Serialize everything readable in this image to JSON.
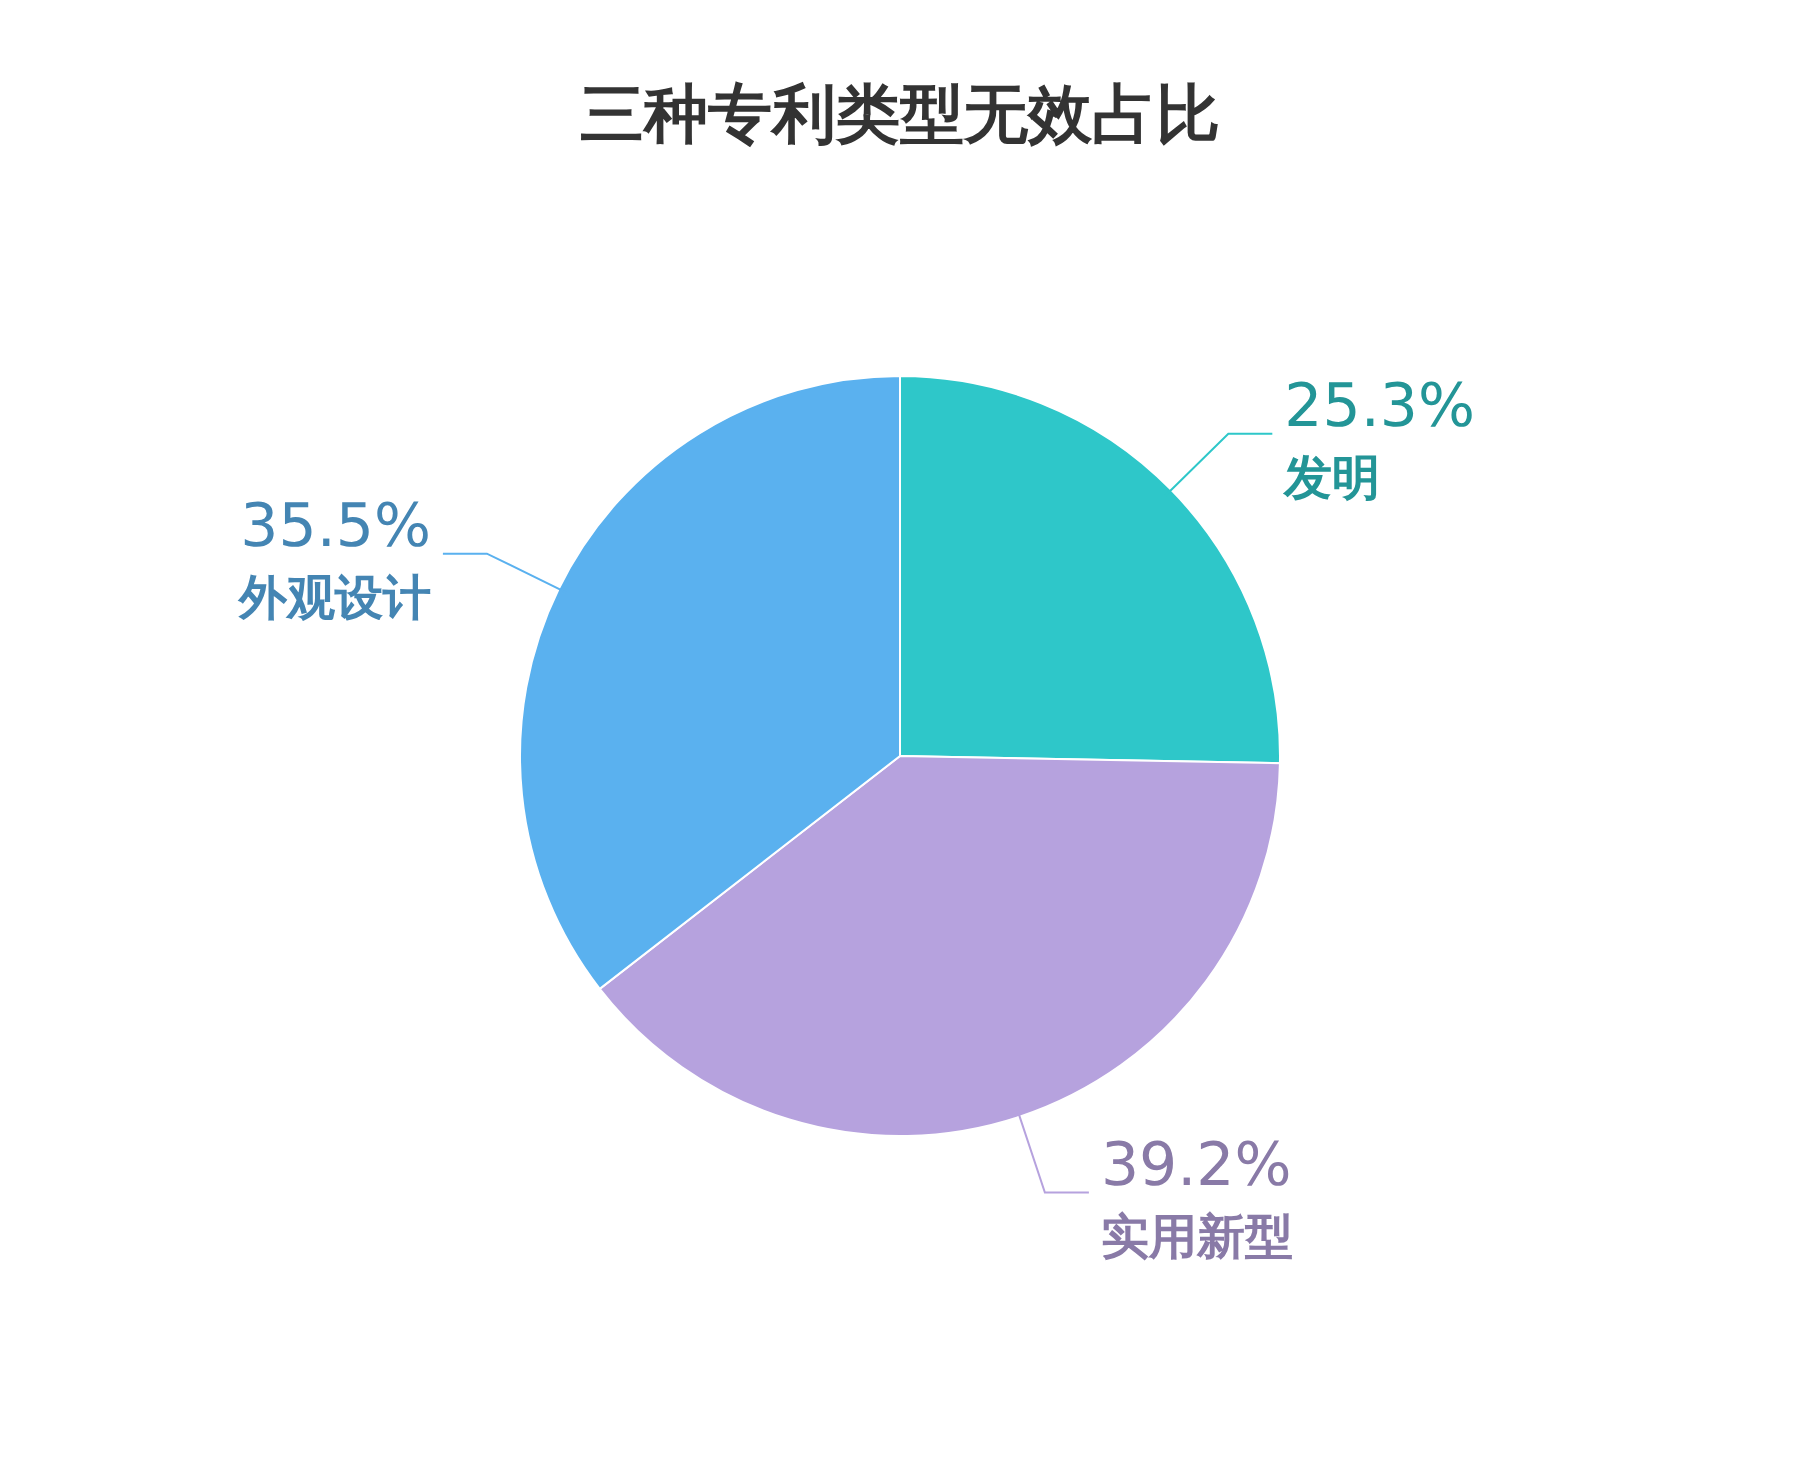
{
  "chart_data": {
    "type": "pie",
    "title": "三种专利类型无效占比",
    "categories": [
      "发明",
      "实用新型",
      "外观设计"
    ],
    "values": [
      25.3,
      39.2,
      35.5
    ],
    "value_labels": [
      "25.3%",
      "39.2%",
      "35.5%"
    ],
    "colors": [
      "#2ec7c9",
      "#b6a2de",
      "#5ab1ef"
    ]
  }
}
